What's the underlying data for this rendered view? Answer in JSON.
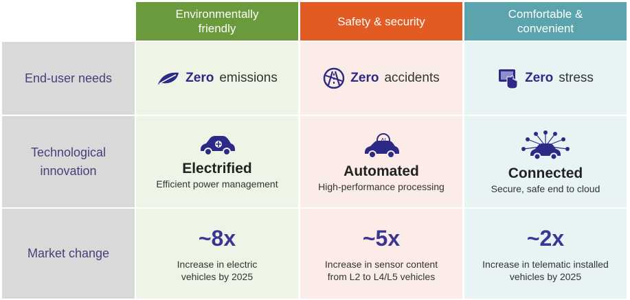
{
  "headers": {
    "environment": "Environmentally friendly",
    "safety": "Safety & security",
    "comfort": "Comfortable & convenient"
  },
  "rows": {
    "needs": "End-user needs",
    "tech": "Technological innovation",
    "market": "Market change"
  },
  "needs": [
    {
      "bold": "Zero",
      "rest": "emissions",
      "icon": "leaf-icon"
    },
    {
      "bold": "Zero",
      "rest": "accidents",
      "icon": "globe-road-icon"
    },
    {
      "bold": "Zero",
      "rest": "stress",
      "icon": "touchscreen-hand-icon"
    }
  ],
  "tech": [
    {
      "title": "Electrified",
      "sub": "Efficient power management",
      "icon": "electric-car-icon"
    },
    {
      "title": "Automated",
      "sub": "High-performance processing",
      "icon": "autonomous-car-icon"
    },
    {
      "title": "Connected",
      "sub": "Secure, safe end to cloud",
      "icon": "connected-car-icon"
    }
  ],
  "market": [
    {
      "value": "~8x",
      "sub": "Increase in electric vehicles by 2025"
    },
    {
      "value": "~5x",
      "sub": "Increase in sensor content from L2 to L4/L5 vehicles"
    },
    {
      "value": "~2x",
      "sub": "Increase in telematic installed vehicles by 2025"
    }
  ],
  "colors": {
    "green": "#6a9a3b",
    "orange": "#e15b22",
    "teal": "#5ba3ad",
    "accent": "#2c2a86"
  }
}
